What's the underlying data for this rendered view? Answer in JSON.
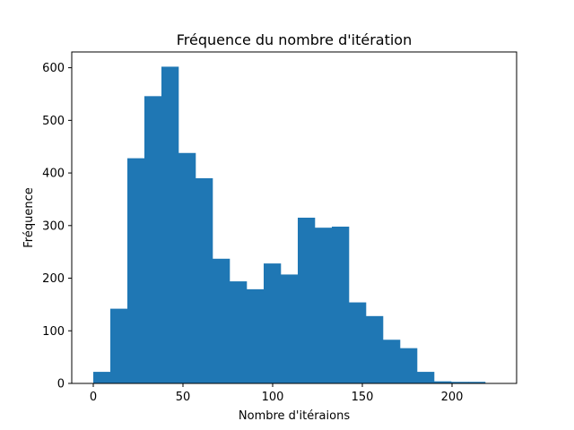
{
  "chart_data": {
    "type": "bar",
    "title": "Fréquence du nombre d'itération",
    "xlabel": "Nombre d'itéraions",
    "ylabel": "Fréquence",
    "xlim": [
      -12,
      236
    ],
    "ylim": [
      0,
      630
    ],
    "grid": false,
    "color": "#1f77b4",
    "xticks": [
      0,
      50,
      100,
      150,
      200
    ],
    "yticks": [
      0,
      100,
      200,
      300,
      400,
      500,
      600
    ],
    "bins": [
      {
        "start": 0,
        "end": 9.5,
        "value": 22
      },
      {
        "start": 9.5,
        "end": 19,
        "value": 142
      },
      {
        "start": 19,
        "end": 28.5,
        "value": 428
      },
      {
        "start": 28.5,
        "end": 38,
        "value": 546
      },
      {
        "start": 38,
        "end": 47.5,
        "value": 602
      },
      {
        "start": 47.5,
        "end": 57,
        "value": 438
      },
      {
        "start": 57,
        "end": 66.5,
        "value": 390
      },
      {
        "start": 66.5,
        "end": 76,
        "value": 237
      },
      {
        "start": 76,
        "end": 85.5,
        "value": 194
      },
      {
        "start": 85.5,
        "end": 95,
        "value": 179
      },
      {
        "start": 95,
        "end": 104.5,
        "value": 228
      },
      {
        "start": 104.5,
        "end": 114,
        "value": 207
      },
      {
        "start": 114,
        "end": 123.5,
        "value": 315
      },
      {
        "start": 123.5,
        "end": 133,
        "value": 296
      },
      {
        "start": 133,
        "end": 142.5,
        "value": 298
      },
      {
        "start": 142.5,
        "end": 152,
        "value": 154
      },
      {
        "start": 152,
        "end": 161.5,
        "value": 128
      },
      {
        "start": 161.5,
        "end": 171,
        "value": 83
      },
      {
        "start": 171,
        "end": 180.5,
        "value": 67
      },
      {
        "start": 180.5,
        "end": 190,
        "value": 22
      },
      {
        "start": 190,
        "end": 199.5,
        "value": 4
      },
      {
        "start": 199.5,
        "end": 209,
        "value": 3
      },
      {
        "start": 209,
        "end": 218.5,
        "value": 3
      }
    ]
  }
}
